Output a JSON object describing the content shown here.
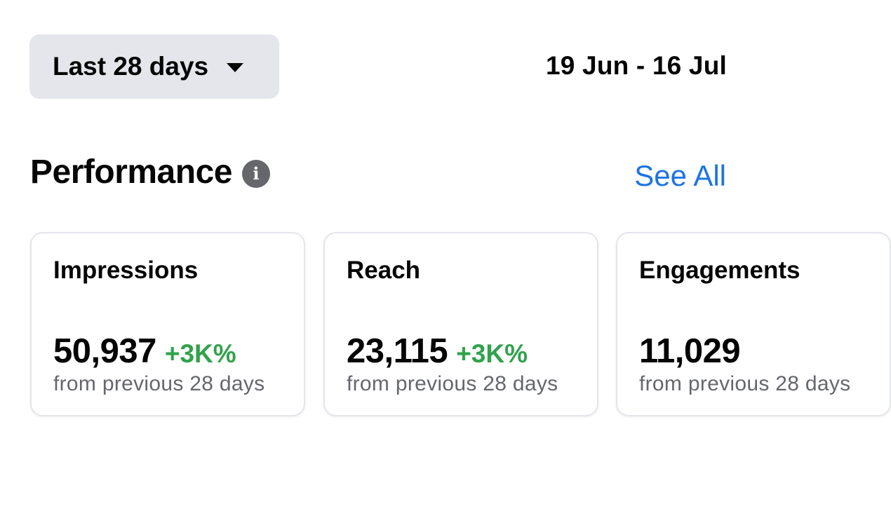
{
  "filter": {
    "range_label": "Last 28 days",
    "caret_icon": "caret-down-icon"
  },
  "date_range": "19 Jun - 16 Jul",
  "performance": {
    "title": "Performance",
    "info_icon_glyph": "i",
    "see_all_label": "See All",
    "cards": [
      {
        "title": "Impressions",
        "value": "50,937",
        "change": "+3K%",
        "caption": "from previous 28 days"
      },
      {
        "title": "Reach",
        "value": "23,115",
        "change": "+3K%",
        "caption": "from previous 28 days"
      },
      {
        "title": "Engagements",
        "value": "11,029",
        "change": "",
        "caption": "from previous 28 days"
      }
    ]
  },
  "colors": {
    "accent_link": "#1b74e4",
    "positive_change": "#31a24c",
    "button_bg": "#e4e6eb",
    "secondary_text": "#65676b"
  }
}
